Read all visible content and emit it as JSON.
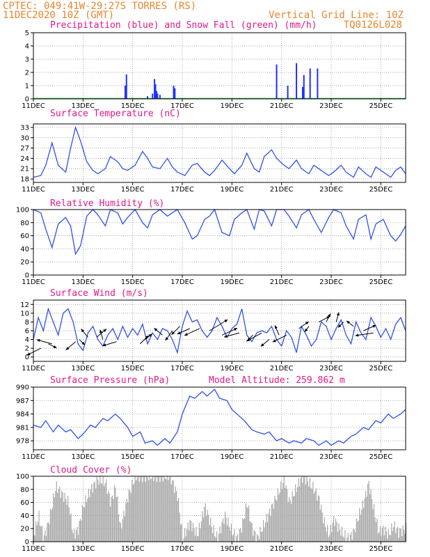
{
  "header": {
    "line1": "CPTEC:  049:41W-29:27S  TORRES (RS)",
    "line2": "11DEC2020 10Z (GMT)",
    "grid_note": "Vertical Grid Line: 10Z",
    "code": "TQ0126L028"
  },
  "colors": {
    "header": "#e3872d",
    "title": "#e0198a",
    "line": "#3050e8",
    "precip": "#2030ff",
    "snow": "#1fae2f",
    "cloud": "#a8a8a8",
    "arrow": "#000000"
  },
  "x_ticks": [
    "11DEC",
    "13DEC",
    "15DEC",
    "17DEC",
    "19DEC",
    "21DEC",
    "23DEC",
    "25DEC"
  ],
  "panel_titles": {
    "precip": "Precipitation (blue) and Snow Fall (green) (mm/h)",
    "temp": "Surface Temperature (nC)",
    "rh": "Relative Humidity (%)",
    "wind": "Surface Wind (m/s)",
    "pres": "Surface Pressure (hPa)",
    "pres_note": "Model Altitude: 259.862 m",
    "cloud": "Cloud Cover (%)"
  },
  "chart_data": [
    {
      "id": "precip",
      "type": "bar",
      "title": "Precipitation (blue) and Snow Fall (green) (mm/h)",
      "x_unit": "days since 11DEC2020 00Z",
      "ylim": [
        0,
        5
      ],
      "yticks": [
        0,
        1,
        2,
        3,
        4,
        5
      ],
      "bars": [
        [
          3.7,
          1.0
        ],
        [
          3.75,
          1.85
        ],
        [
          4.6,
          0.2
        ],
        [
          4.8,
          0.4
        ],
        [
          4.88,
          1.5
        ],
        [
          4.92,
          1.1
        ],
        [
          4.96,
          0.6
        ],
        [
          5.0,
          0.4
        ],
        [
          5.1,
          0.3
        ],
        [
          5.65,
          1.0
        ],
        [
          5.7,
          0.8
        ],
        [
          9.8,
          2.6
        ],
        [
          10.25,
          1.0
        ],
        [
          10.6,
          2.7
        ],
        [
          10.85,
          0.9
        ],
        [
          10.9,
          1.8
        ],
        [
          11.15,
          2.3
        ],
        [
          11.45,
          2.3
        ]
      ],
      "snow": 0
    },
    {
      "id": "temp",
      "type": "line",
      "title": "Surface Temperature (nC)",
      "ylim": [
        17,
        34
      ],
      "yticks": [
        18,
        21,
        24,
        27,
        30,
        33
      ],
      "x": [
        0,
        0.3,
        0.5,
        0.75,
        1.0,
        1.3,
        1.5,
        1.7,
        1.9,
        2.15,
        2.4,
        2.6,
        2.9,
        3.1,
        3.4,
        3.6,
        3.8,
        4.1,
        4.4,
        4.6,
        4.8,
        5.1,
        5.4,
        5.6,
        5.8,
        6.1,
        6.4,
        6.6,
        6.9,
        7.1,
        7.3,
        7.6,
        7.9,
        8.1,
        8.4,
        8.6,
        8.9,
        9.1,
        9.3,
        9.6,
        9.8,
        10.1,
        10.3,
        10.6,
        10.8,
        11.1,
        11.3,
        11.6,
        11.9,
        12.1,
        12.4,
        12.6,
        12.9,
        13.1,
        13.4,
        13.6,
        13.8,
        14.1,
        14.4,
        14.6,
        14.8,
        15.0
      ],
      "y": [
        18.5,
        19,
        22,
        28.5,
        22,
        20,
        27,
        33,
        29,
        23,
        20.5,
        19.5,
        21,
        24.5,
        23,
        21,
        20.5,
        22,
        26,
        24,
        21.5,
        21,
        24,
        21.5,
        20,
        19,
        22,
        22.5,
        20,
        19,
        20.5,
        23.5,
        21,
        19.5,
        22,
        25.5,
        21,
        20,
        24.5,
        26.5,
        24,
        22,
        21,
        23.5,
        21,
        19.5,
        22,
        20.5,
        19,
        20,
        22,
        20,
        18.5,
        21.5,
        19.5,
        18.5,
        21.5,
        20,
        18.5,
        20.5,
        21.5,
        19.5
      ]
    },
    {
      "id": "rh",
      "type": "line",
      "title": "Relative Humidity (%)",
      "ylim": [
        0,
        100
      ],
      "yticks": [
        0,
        20,
        40,
        60,
        80,
        100
      ],
      "x": [
        0,
        0.3,
        0.5,
        0.75,
        1.0,
        1.3,
        1.5,
        1.7,
        1.9,
        2.15,
        2.4,
        2.6,
        2.9,
        3.1,
        3.4,
        3.6,
        3.8,
        4.1,
        4.4,
        4.6,
        4.8,
        5.1,
        5.4,
        5.6,
        5.8,
        6.1,
        6.4,
        6.6,
        6.9,
        7.1,
        7.3,
        7.6,
        7.9,
        8.1,
        8.4,
        8.6,
        8.9,
        9.1,
        9.3,
        9.6,
        9.8,
        10.1,
        10.3,
        10.6,
        10.8,
        11.1,
        11.3,
        11.6,
        11.9,
        12.1,
        12.4,
        12.6,
        12.9,
        13.1,
        13.4,
        13.6,
        13.8,
        14.1,
        14.4,
        14.6,
        14.8,
        15.0
      ],
      "y": [
        100,
        95,
        70,
        42,
        78,
        88,
        75,
        32,
        45,
        90,
        100,
        92,
        75,
        100,
        95,
        78,
        88,
        100,
        80,
        72,
        92,
        100,
        90,
        95,
        100,
        80,
        55,
        60,
        85,
        90,
        100,
        65,
        60,
        85,
        95,
        100,
        70,
        100,
        98,
        75,
        100,
        100,
        90,
        72,
        92,
        100,
        85,
        65,
        88,
        100,
        95,
        75,
        55,
        85,
        92,
        55,
        78,
        85,
        60,
        52,
        62,
        75
      ]
    },
    {
      "id": "wind",
      "type": "line",
      "title": "Surface Wind (m/s)",
      "ylim": [
        -1,
        13
      ],
      "yticks": [
        0,
        2,
        4,
        6,
        8,
        10,
        12
      ],
      "x": [
        0,
        0.2,
        0.4,
        0.6,
        0.8,
        1.0,
        1.2,
        1.4,
        1.6,
        1.8,
        2.0,
        2.2,
        2.4,
        2.6,
        2.8,
        3.0,
        3.2,
        3.4,
        3.6,
        3.8,
        4.0,
        4.2,
        4.4,
        4.6,
        4.8,
        5.0,
        5.2,
        5.4,
        5.6,
        5.8,
        6.0,
        6.2,
        6.4,
        6.6,
        6.8,
        7.0,
        7.2,
        7.4,
        7.6,
        7.8,
        8.0,
        8.2,
        8.4,
        8.6,
        8.8,
        9.0,
        9.2,
        9.4,
        9.6,
        9.8,
        10.0,
        10.2,
        10.4,
        10.6,
        10.8,
        11.0,
        11.2,
        11.4,
        11.6,
        11.8,
        12.0,
        12.2,
        12.4,
        12.6,
        12.8,
        13.0,
        13.2,
        13.4,
        13.6,
        13.8,
        14.0,
        14.2,
        14.4,
        14.6,
        14.8,
        15.0
      ],
      "y": [
        4,
        9,
        6,
        11,
        8,
        5,
        10,
        11,
        8,
        3,
        1.5,
        5.5,
        7,
        4,
        2.5,
        5,
        6.5,
        4,
        7,
        4.5,
        6.5,
        5,
        7.5,
        3,
        5.5,
        4,
        6.5,
        6,
        4,
        1,
        7,
        10.5,
        8,
        8.5,
        6,
        4.5,
        6,
        9,
        7,
        4.5,
        6.5,
        7.5,
        11,
        5,
        3.5,
        5.5,
        6,
        5.5,
        7,
        4,
        2.5,
        6,
        4.5,
        1,
        7,
        5,
        2.5,
        4,
        8,
        7,
        4,
        6.5,
        8.5,
        5,
        3,
        8,
        5.5,
        4,
        9,
        7,
        4.5,
        6.5,
        4,
        7.5,
        9,
        6
      ],
      "vectors": [
        [
          0.3,
          2,
          -20,
          10
        ],
        [
          0.6,
          3,
          12,
          6
        ],
        [
          0.75,
          3,
          -22,
          -6
        ],
        [
          1.7,
          3.5,
          -14,
          12
        ],
        [
          1.85,
          4,
          8,
          8
        ],
        [
          2.2,
          4.5,
          -10,
          -12
        ],
        [
          2.55,
          4.5,
          14,
          -12
        ],
        [
          2.8,
          4,
          -4,
          -14
        ],
        [
          3.35,
          3.5,
          -20,
          6
        ],
        [
          4.3,
          3,
          12,
          -12
        ],
        [
          4.5,
          4,
          10,
          -8
        ],
        [
          5.2,
          5,
          -12,
          -10
        ],
        [
          5.6,
          6,
          -10,
          14
        ],
        [
          5.9,
          7,
          -12,
          12
        ],
        [
          6.3,
          6.5,
          -18,
          8
        ],
        [
          6.7,
          6.5,
          -22,
          10
        ],
        [
          7.1,
          6,
          26,
          -16
        ],
        [
          7.6,
          5,
          22,
          -10
        ],
        [
          8.3,
          5.5,
          -22,
          6
        ],
        [
          8.85,
          5,
          -8,
          8
        ],
        [
          9.2,
          5.5,
          -22,
          12
        ],
        [
          9.5,
          4,
          -12,
          10
        ],
        [
          9.9,
          5,
          -6,
          -14
        ],
        [
          10.2,
          5,
          -20,
          10
        ],
        [
          10.7,
          6.5,
          14,
          -10
        ],
        [
          11.1,
          7,
          -6,
          8
        ],
        [
          11.5,
          8,
          16,
          -8
        ],
        [
          11.8,
          8,
          6,
          -12
        ],
        [
          12.2,
          8,
          4,
          -14
        ],
        [
          12.5,
          8,
          -8,
          8
        ],
        [
          12.9,
          7,
          -10,
          -8
        ],
        [
          13.3,
          6,
          18,
          -8
        ],
        [
          13.7,
          5.5,
          -26,
          4
        ]
      ]
    },
    {
      "id": "pres",
      "type": "line",
      "title": "Surface Pressure (hPa)",
      "ylim": [
        976,
        990
      ],
      "yticks": [
        978,
        981,
        984,
        987,
        990
      ],
      "x": [
        0,
        0.3,
        0.5,
        0.8,
        1.0,
        1.3,
        1.5,
        1.8,
        2.0,
        2.3,
        2.5,
        2.8,
        3.0,
        3.3,
        3.5,
        3.8,
        4.0,
        4.3,
        4.5,
        4.8,
        5.0,
        5.3,
        5.5,
        5.8,
        6.0,
        6.3,
        6.5,
        6.8,
        7.0,
        7.3,
        7.5,
        7.8,
        8.0,
        8.3,
        8.5,
        8.8,
        9.0,
        9.3,
        9.5,
        9.8,
        10.0,
        10.3,
        10.5,
        10.8,
        11.0,
        11.3,
        11.5,
        11.8,
        12.0,
        12.3,
        12.5,
        12.8,
        13.0,
        13.3,
        13.5,
        13.8,
        14.0,
        14.3,
        14.5,
        14.8,
        15.0
      ],
      "y": [
        981.5,
        981,
        982.5,
        980,
        981.5,
        980,
        980.5,
        978.5,
        979.5,
        981.5,
        981,
        983,
        982.5,
        984,
        983,
        981,
        979,
        980,
        977.5,
        978,
        977,
        978.5,
        977.5,
        980,
        984,
        988,
        987.5,
        989,
        988,
        989.5,
        987.5,
        987,
        985,
        983.5,
        982.5,
        980.5,
        980,
        979.5,
        980,
        978,
        978.5,
        977.5,
        978,
        977.5,
        978.5,
        978,
        977,
        978,
        977,
        978,
        977.5,
        979,
        979.5,
        981,
        980.5,
        982.5,
        982,
        984,
        983,
        984,
        985
      ]
    },
    {
      "id": "cloud",
      "type": "bar",
      "title": "Cloud Cover (%)",
      "ylim": [
        0,
        100
      ],
      "yticks": [
        0,
        20,
        40,
        60,
        80,
        100
      ],
      "profile": [
        [
          0,
          10
        ],
        [
          0.2,
          40
        ],
        [
          0.4,
          5
        ],
        [
          0.6,
          30
        ],
        [
          0.9,
          85
        ],
        [
          1.2,
          70
        ],
        [
          1.4,
          60
        ],
        [
          1.6,
          10
        ],
        [
          1.8,
          20
        ],
        [
          2.0,
          55
        ],
        [
          2.3,
          80
        ],
        [
          2.6,
          95
        ],
        [
          2.9,
          90
        ],
        [
          3.1,
          60
        ],
        [
          3.3,
          85
        ],
        [
          3.5,
          20
        ],
        [
          3.8,
          70
        ],
        [
          4.1,
          100
        ],
        [
          4.5,
          100
        ],
        [
          4.9,
          100
        ],
        [
          5.2,
          100
        ],
        [
          5.5,
          100
        ],
        [
          5.8,
          70
        ],
        [
          6.0,
          5
        ],
        [
          6.3,
          30
        ],
        [
          6.6,
          10
        ],
        [
          6.9,
          55
        ],
        [
          7.2,
          20
        ],
        [
          7.4,
          5
        ],
        [
          7.7,
          40
        ],
        [
          8.0,
          15
        ],
        [
          8.2,
          5
        ],
        [
          8.4,
          25
        ],
        [
          8.6,
          60
        ],
        [
          8.8,
          20
        ],
        [
          9.0,
          5
        ],
        [
          9.2,
          20
        ],
        [
          9.5,
          45
        ],
        [
          9.8,
          70
        ],
        [
          10.1,
          95
        ],
        [
          10.3,
          60
        ],
        [
          10.5,
          75
        ],
        [
          10.8,
          100
        ],
        [
          11.0,
          95
        ],
        [
          11.3,
          80
        ],
        [
          11.5,
          65
        ],
        [
          11.7,
          30
        ],
        [
          11.9,
          10
        ],
        [
          12.1,
          35
        ],
        [
          12.3,
          20
        ],
        [
          12.5,
          10
        ],
        [
          12.7,
          5
        ],
        [
          12.9,
          15
        ],
        [
          13.1,
          40
        ],
        [
          13.3,
          60
        ],
        [
          13.5,
          90
        ],
        [
          13.7,
          50
        ],
        [
          13.9,
          15
        ],
        [
          14.1,
          20
        ],
        [
          14.3,
          10
        ],
        [
          14.5,
          25
        ],
        [
          14.7,
          15
        ],
        [
          15.0,
          20
        ]
      ]
    }
  ]
}
